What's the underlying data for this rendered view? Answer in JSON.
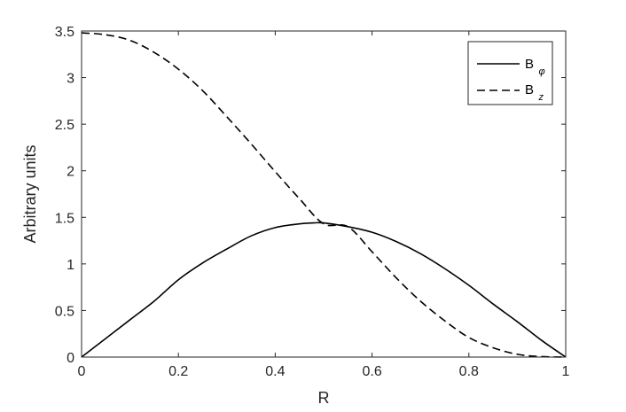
{
  "chart_data": {
    "type": "line",
    "xlabel": "R",
    "ylabel": "Arbitrary units",
    "xlim": [
      0,
      1
    ],
    "ylim": [
      0,
      3.5
    ],
    "xticks": [
      0,
      0.2,
      0.4,
      0.6,
      0.8,
      1
    ],
    "xtick_labels": [
      "0",
      "0.2",
      "0.4",
      "0.6",
      "0.8",
      "1"
    ],
    "yticks": [
      0,
      0.5,
      1,
      1.5,
      2,
      2.5,
      3,
      3.5
    ],
    "ytick_labels": [
      "0",
      "0.5",
      "1",
      "1.5",
      "2",
      "2.5",
      "3",
      "3.5"
    ],
    "grid": false,
    "legend_position": "top-right",
    "series": [
      {
        "name": "B_φ",
        "label_main": "B",
        "label_sub": "φ",
        "style": "solid",
        "color": "#000000",
        "x": [
          0,
          0.05,
          0.1,
          0.15,
          0.2,
          0.25,
          0.3,
          0.35,
          0.4,
          0.45,
          0.48,
          0.5,
          0.55,
          0.6,
          0.65,
          0.7,
          0.75,
          0.8,
          0.85,
          0.9,
          0.95,
          1
        ],
        "y": [
          0,
          0.2,
          0.4,
          0.6,
          0.83,
          1.01,
          1.16,
          1.3,
          1.39,
          1.43,
          1.44,
          1.44,
          1.4,
          1.34,
          1.24,
          1.11,
          0.95,
          0.77,
          0.57,
          0.38,
          0.18,
          0
        ]
      },
      {
        "name": "B_z",
        "label_main": "B",
        "label_sub": "z",
        "style": "dashed",
        "color": "#000000",
        "x": [
          0,
          0.05,
          0.1,
          0.15,
          0.2,
          0.25,
          0.3,
          0.35,
          0.4,
          0.45,
          0.5,
          0.55,
          0.6,
          0.65,
          0.7,
          0.75,
          0.8,
          0.85,
          0.9,
          0.95,
          1
        ],
        "y": [
          3.48,
          3.46,
          3.4,
          3.27,
          3.09,
          2.86,
          2.58,
          2.29,
          1.99,
          1.7,
          1.43,
          1.4,
          1.13,
          0.85,
          0.6,
          0.39,
          0.21,
          0.1,
          0.03,
          0.005,
          0
        ]
      }
    ]
  }
}
